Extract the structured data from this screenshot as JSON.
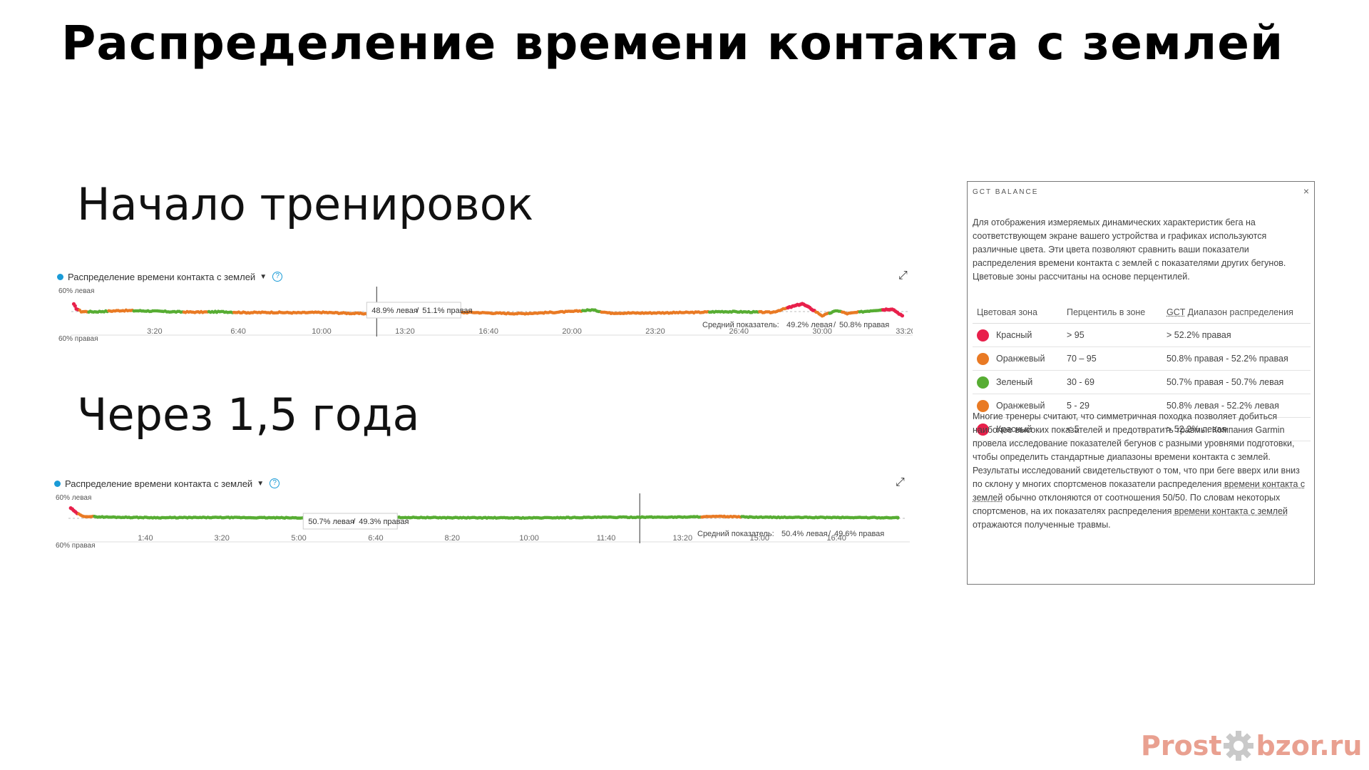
{
  "title": "Распределение времени контакта с землей",
  "section1": "Начало тренировок",
  "section2": "Через 1,5 года",
  "colors": {
    "green": "#57ad33",
    "orange": "#e97a24",
    "red": "#e8204b",
    "blue": "#1a9bd7"
  },
  "chart1": {
    "header": "Распределение времени контакта с землей",
    "icons": [
      "dot-icon",
      "caret-down-icon",
      "help-icon",
      "expand-icon"
    ],
    "tooltip_left": "48.9% левая",
    "tooltip_sep": "/",
    "tooltip_right": "51.1% правая",
    "avg_label": "Средний показатель:",
    "avg_left": "49.2% левая",
    "avg_sep": "/",
    "avg_right": "50.8% правая"
  },
  "chart2": {
    "header": "Распределение времени контакта с землей",
    "icons": [
      "dot-icon",
      "caret-down-icon",
      "help-icon",
      "expand-icon"
    ],
    "tooltip_left": "50.7% левая",
    "tooltip_sep": "/",
    "tooltip_right": "49.3% правая",
    "avg_label": "Средний показатель:",
    "avg_left": "50.4% левая",
    "avg_sep": "/",
    "avg_right": "49.6% правая"
  },
  "chart_data": [
    {
      "type": "scatter",
      "title": "Распределение времени контакта с землей",
      "ylabel_top": "60% левая",
      "ylabel_bottom": "60% правая",
      "x_ticks": [
        "3:20",
        "6:40",
        "10:00",
        "13:20",
        "16:40",
        "20:00",
        "23:20",
        "26:40",
        "30:00",
        "33:20"
      ],
      "x_tick_minutes": [
        3.33,
        6.67,
        10,
        13.33,
        16.67,
        20,
        23.33,
        26.67,
        30,
        33.33
      ],
      "xlim_minutes": [
        0,
        33.5
      ],
      "ylim_left_percent": [
        40,
        60
      ],
      "cursor_minutes": 12.2,
      "average_left_percent": 49.2,
      "series_samples_left_percent": [
        {
          "t": 0.1,
          "v": 53.5,
          "zone": "red"
        },
        {
          "t": 0.2,
          "v": 51.5,
          "zone": "red"
        },
        {
          "t": 0.4,
          "v": 50.0,
          "zone": "orange"
        },
        {
          "t": 1.0,
          "v": 49.9,
          "zone": "green"
        },
        {
          "t": 2.0,
          "v": 50.5,
          "zone": "orange"
        },
        {
          "t": 3.0,
          "v": 50.3,
          "zone": "green"
        },
        {
          "t": 4.0,
          "v": 49.9,
          "zone": "green"
        },
        {
          "t": 5.0,
          "v": 49.7,
          "zone": "orange"
        },
        {
          "t": 6.0,
          "v": 49.9,
          "zone": "green"
        },
        {
          "t": 7.0,
          "v": 49.5,
          "zone": "orange"
        },
        {
          "t": 8.0,
          "v": 49.6,
          "zone": "orange"
        },
        {
          "t": 9.0,
          "v": 49.4,
          "zone": "orange"
        },
        {
          "t": 10.0,
          "v": 49.6,
          "zone": "orange"
        },
        {
          "t": 11.0,
          "v": 49.2,
          "zone": "orange"
        },
        {
          "t": 12.0,
          "v": 48.9,
          "zone": "orange"
        },
        {
          "t": 13.0,
          "v": 49.4,
          "zone": "orange"
        },
        {
          "t": 14.0,
          "v": 49.5,
          "zone": "orange"
        },
        {
          "t": 15.0,
          "v": 49.4,
          "zone": "orange"
        },
        {
          "t": 16.0,
          "v": 49.6,
          "zone": "orange"
        },
        {
          "t": 17.0,
          "v": 49.2,
          "zone": "orange"
        },
        {
          "t": 18.0,
          "v": 49.0,
          "zone": "orange"
        },
        {
          "t": 19.0,
          "v": 49.5,
          "zone": "orange"
        },
        {
          "t": 20.0,
          "v": 50.0,
          "zone": "orange"
        },
        {
          "t": 20.8,
          "v": 50.8,
          "zone": "green"
        },
        {
          "t": 21.5,
          "v": 49.3,
          "zone": "orange"
        },
        {
          "t": 23.0,
          "v": 49.3,
          "zone": "orange"
        },
        {
          "t": 25.0,
          "v": 49.6,
          "zone": "orange"
        },
        {
          "t": 26.0,
          "v": 50.0,
          "zone": "green"
        },
        {
          "t": 27.0,
          "v": 49.8,
          "zone": "green"
        },
        {
          "t": 28.0,
          "v": 49.6,
          "zone": "orange"
        },
        {
          "t": 29.2,
          "v": 53.8,
          "zone": "red"
        },
        {
          "t": 29.5,
          "v": 51.8,
          "zone": "red"
        },
        {
          "t": 30.0,
          "v": 48.0,
          "zone": "orange"
        },
        {
          "t": 30.6,
          "v": 50.5,
          "zone": "green"
        },
        {
          "t": 31.0,
          "v": 49.0,
          "zone": "orange"
        },
        {
          "t": 32.0,
          "v": 50.5,
          "zone": "green"
        },
        {
          "t": 32.8,
          "v": 51.3,
          "zone": "red"
        },
        {
          "t": 33.2,
          "v": 48.0,
          "zone": "red"
        }
      ]
    },
    {
      "type": "scatter",
      "title": "Распределение времени контакта с землей",
      "ylabel_top": "60% левая",
      "ylabel_bottom": "60% правая",
      "x_ticks": [
        "1:40",
        "3:20",
        "5:00",
        "6:40",
        "8:20",
        "10:00",
        "11:40",
        "13:20",
        "15:00",
        "16:40"
      ],
      "x_tick_minutes": [
        1.67,
        3.33,
        5,
        6.67,
        8.33,
        10,
        11.67,
        13.33,
        15,
        16.67
      ],
      "xlim_minutes": [
        0,
        18.2
      ],
      "ylim_left_percent": [
        40,
        60
      ],
      "cursor_minutes": 12.4,
      "average_left_percent": 50.4,
      "series_samples_left_percent": [
        {
          "t": 0.05,
          "v": 55.0,
          "zone": "red"
        },
        {
          "t": 0.15,
          "v": 53.0,
          "zone": "red"
        },
        {
          "t": 0.3,
          "v": 51.0,
          "zone": "orange"
        },
        {
          "t": 0.8,
          "v": 50.6,
          "zone": "green"
        },
        {
          "t": 2.0,
          "v": 50.3,
          "zone": "green"
        },
        {
          "t": 3.3,
          "v": 50.4,
          "zone": "green"
        },
        {
          "t": 5.0,
          "v": 50.2,
          "zone": "green"
        },
        {
          "t": 6.7,
          "v": 50.5,
          "zone": "green"
        },
        {
          "t": 8.3,
          "v": 50.3,
          "zone": "green"
        },
        {
          "t": 10.0,
          "v": 50.2,
          "zone": "green"
        },
        {
          "t": 11.7,
          "v": 50.5,
          "zone": "green"
        },
        {
          "t": 13.3,
          "v": 50.6,
          "zone": "green"
        },
        {
          "t": 14.2,
          "v": 50.9,
          "zone": "orange"
        },
        {
          "t": 15.0,
          "v": 50.5,
          "zone": "green"
        },
        {
          "t": 16.7,
          "v": 50.4,
          "zone": "green"
        },
        {
          "t": 18.0,
          "v": 50.3,
          "zone": "green"
        }
      ]
    }
  ],
  "panel": {
    "title": "GCT BALANCE",
    "close": "×",
    "intro": "Для отображения измеряемых динамических характеристик бега на соответствующем экране вашего устройства и графиках используются различные цвета. Эти цвета позволяют сравнить ваши показатели распределения времени контакта с землей с показателями других бегунов. Цветовые зоны рассчитаны на основе перцентилей.",
    "headers": {
      "zone": "Цветовая зона",
      "percentile": "Перцентиль в зоне",
      "gct": "GCT",
      "range": "Диапазон распределения"
    },
    "rows": [
      {
        "zone": "Красный",
        "color": "#e8204b",
        "percentile": "> 95",
        "range": "> 52.2% правая"
      },
      {
        "zone": "Оранжевый",
        "color": "#e97a24",
        "percentile": "70 – 95",
        "range": "50.8% правая - 52.2% правая"
      },
      {
        "zone": "Зеленый",
        "color": "#57ad33",
        "percentile": "30 - 69",
        "range": "50.7% правая - 50.7% левая"
      },
      {
        "zone": "Оранжевый",
        "color": "#e97a24",
        "percentile": "5 - 29",
        "range": "50.8% левая - 52.2% левая"
      },
      {
        "zone": "Красный",
        "color": "#e8204b",
        "percentile": "< 5",
        "range": "> 52.2% левая"
      }
    ],
    "body_a": "Многие тренеры считают, что симметричная походка позволяет добиться наиболее высоких показателей и предотвратить травмы. Компания Garmin провела исследование показателей бегунов с разными уровнями подготовки, чтобы определить стандартные диапазоны времени контакта с землей. Результаты исследований свидетельствуют о том, что при беге вверх или вниз по склону у многих спортсменов показатели распределения ",
    "body_link1": "времени контакта с землей",
    "body_b": " обычно отклоняются от соотношения 50/50. По словам некоторых спортсменов, на их показателях распределения ",
    "body_link2": "времени контакта с землей",
    "body_c": " отражаются полученные травмы."
  },
  "logo": {
    "left": "Prost",
    "right": "bzor.ru",
    "icon": "gear-icon"
  }
}
